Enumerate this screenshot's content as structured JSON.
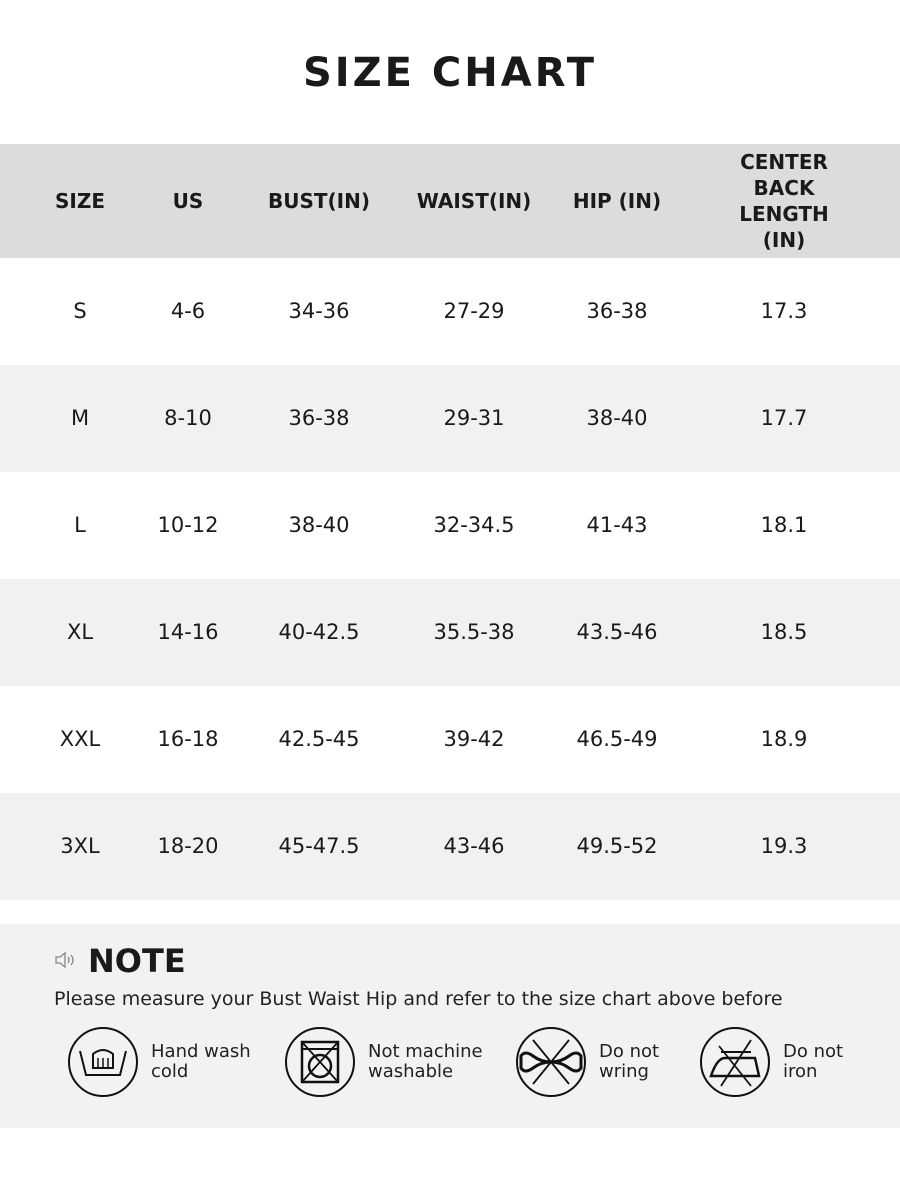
{
  "title": "SIZE CHART",
  "table": {
    "headers": [
      "SIZE",
      "US",
      "BUST(IN)",
      "WAIST(IN)",
      "HIP (IN)",
      "CENTER BACK\nLENGTH (IN)"
    ],
    "rows": [
      [
        "S",
        "4-6",
        "34-36",
        "27-29",
        "36-38",
        "17.3"
      ],
      [
        "M",
        "8-10",
        "36-38",
        "29-31",
        "38-40",
        "17.7"
      ],
      [
        "L",
        "10-12",
        "38-40",
        "32-34.5",
        "41-43",
        "18.1"
      ],
      [
        "XL",
        "14-16",
        "40-42.5",
        "35.5-38",
        "43.5-46",
        "18.5"
      ],
      [
        "XXL",
        "16-18",
        "42.5-45",
        "39-42",
        "46.5-49",
        "18.9"
      ],
      [
        "3XL",
        "18-20",
        "45-47.5",
        "43-46",
        "49.5-52",
        "19.3"
      ]
    ]
  },
  "note": {
    "icon": "speaker-icon",
    "title": "NOTE",
    "text": "Please measure your Bust Waist Hip and refer to the size chart above before",
    "care": [
      {
        "icon": "hand-wash-icon",
        "label": "Hand wash\ncold"
      },
      {
        "icon": "no-machine-wash-icon",
        "label": "Not machine\nwashable"
      },
      {
        "icon": "do-not-wring-icon",
        "label": "Do not\nwring"
      },
      {
        "icon": "do-not-iron-icon",
        "label": "Do not\niron"
      }
    ]
  },
  "colors": {
    "header_bg": "#dcdcdc",
    "alt_row_bg": "#f1f1f1",
    "note_bg": "#f2f2f2"
  }
}
